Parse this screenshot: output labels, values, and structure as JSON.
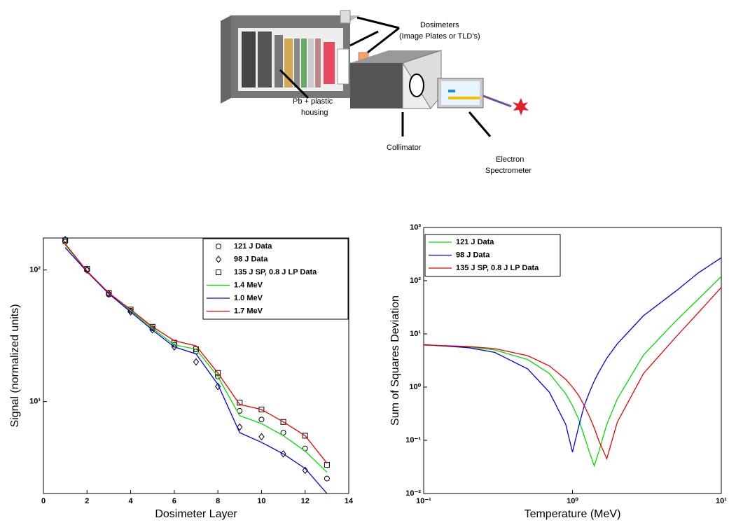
{
  "diagram": {
    "labels": [
      "Dosimeters",
      "(Image Plates or TLD's)",
      "Pb + plastic",
      "housing",
      "Collimator",
      "Electron",
      "Spectrometer"
    ]
  },
  "chart_data": [
    {
      "type": "line",
      "xlabel": "Dosimeter Layer",
      "ylabel": "Signal (normalized units)",
      "x": [
        1,
        2,
        3,
        4,
        5,
        6,
        7,
        8,
        9,
        10,
        11,
        12,
        13
      ],
      "xlim": [
        0,
        14
      ],
      "xticks": [
        0,
        2,
        4,
        6,
        8,
        10,
        12,
        14
      ],
      "ylim": [
        2,
        175
      ],
      "ylog": true,
      "yticks": [
        {
          "value": 10,
          "label": "10¹"
        },
        {
          "value": 100,
          "label": "10²"
        }
      ],
      "legend": "upper right",
      "series": [
        {
          "name": "121 J Data",
          "color": "#000000",
          "marker": "circle",
          "values": [
            164,
            100,
            65,
            49,
            36,
            27,
            24,
            15.5,
            8.5,
            7.3,
            5.8,
            4.4,
            2.6
          ]
        },
        {
          "name": "98 J Data",
          "color": "#000000",
          "marker": "diamond",
          "values": [
            170,
            100,
            66,
            48,
            35,
            26,
            20,
            13,
            6.4,
            5.4,
            4.0,
            3.0,
            null
          ]
        },
        {
          "name": "135 J SP, 0.8 J LP Data",
          "color": "#000000",
          "marker": "square",
          "values": [
            168,
            102,
            67,
            50,
            37,
            28,
            25,
            16.5,
            9.8,
            8.7,
            7.0,
            5.5,
            3.3
          ]
        },
        {
          "name": "1.4 MeV",
          "color": "#00dd00",
          "values": [
            155,
            98,
            66,
            49,
            36,
            27,
            25,
            15.5,
            7.8,
            6.8,
            5.5,
            4.2,
            2.9
          ]
        },
        {
          "name": "1.0 MeV",
          "color": "#0000ee",
          "values": [
            148,
            97,
            66,
            48,
            35,
            26,
            23,
            13.5,
            5.8,
            4.9,
            4.0,
            3.1,
            2.0
          ]
        },
        {
          "name": "1.7 MeV",
          "color": "#ee0000",
          "values": [
            158,
            98,
            67,
            50,
            37,
            29,
            26.5,
            16.5,
            9.5,
            8.7,
            7.0,
            5.5,
            3.4
          ]
        }
      ]
    },
    {
      "type": "line",
      "xlabel": "Temperature (MeV)",
      "ylabel": "Sum of Squares Deviation",
      "x": [
        0.1,
        0.2,
        0.3,
        0.5,
        0.7,
        0.9,
        1.0,
        1.1,
        1.2,
        1.3,
        1.4,
        1.5,
        1.7,
        2,
        3,
        5,
        7,
        10
      ],
      "xlim": [
        0.1,
        10
      ],
      "xlog": true,
      "xticks": [
        {
          "value": 0.1,
          "label": "10⁻¹"
        },
        {
          "value": 1,
          "label": "10⁰"
        },
        {
          "value": 10,
          "label": "10¹"
        }
      ],
      "ylim": [
        0.01,
        1000
      ],
      "ylog": true,
      "yticks": [
        {
          "value": 0.01,
          "label": "10⁻²"
        },
        {
          "value": 0.1,
          "label": "10⁻¹"
        },
        {
          "value": 1,
          "label": "10⁰"
        },
        {
          "value": 10,
          "label": "10¹"
        },
        {
          "value": 100,
          "label": "10²"
        },
        {
          "value": 1000,
          "label": "10³"
        }
      ],
      "legend": "upper left",
      "series": [
        {
          "name": "121 J Data",
          "color": "#00dd00",
          "values": [
            6.2,
            5.7,
            5.0,
            3.3,
            1.8,
            0.75,
            0.45,
            0.25,
            0.12,
            0.06,
            0.033,
            0.06,
            0.2,
            0.6,
            4,
            18,
            45,
            120
          ]
        },
        {
          "name": "98 J Data",
          "color": "#0000ee",
          "values": [
            6.3,
            5.5,
            4.5,
            2.2,
            0.8,
            0.2,
            0.06,
            0.18,
            0.45,
            0.8,
            1.3,
            1.9,
            3.5,
            6.5,
            22,
            65,
            140,
            270
          ]
        },
        {
          "name": "135 J SP, 0.8 J LP Data",
          "color": "#ee0000",
          "values": [
            6.2,
            5.8,
            5.3,
            3.9,
            2.5,
            1.4,
            1.0,
            0.7,
            0.45,
            0.28,
            0.17,
            0.1,
            0.045,
            0.22,
            1.8,
            9,
            25,
            75
          ]
        }
      ]
    }
  ]
}
